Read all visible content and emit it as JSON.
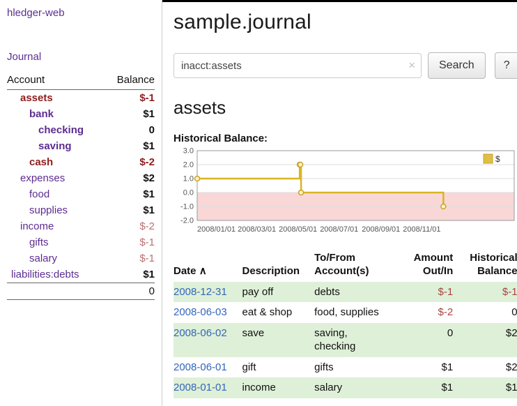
{
  "colors": {
    "purple": "#5c2d91",
    "link_blue": "#3366bb",
    "neg_strong": "#8f1d1d",
    "neg_soft": "#bb7070",
    "table_neg": "#a94442",
    "row_green": "#dff0d8"
  },
  "app": {
    "title": "hledger-web"
  },
  "sidebar": {
    "journal_link": "Journal",
    "accounts": {
      "account_header": "Account",
      "balance_header": "Balance",
      "rows": [
        {
          "name": "assets",
          "balance": "$-1",
          "depth": 1,
          "bold": true,
          "name_neg": true,
          "bal_neg": "strong"
        },
        {
          "name": "bank",
          "balance": "$1",
          "depth": 2,
          "bold": true,
          "name_neg": false,
          "bal_neg": ""
        },
        {
          "name": "checking",
          "balance": "0",
          "depth": 3,
          "bold": true,
          "name_neg": false,
          "bal_neg": ""
        },
        {
          "name": "saving",
          "balance": "$1",
          "depth": 3,
          "bold": true,
          "name_neg": false,
          "bal_neg": ""
        },
        {
          "name": "cash",
          "balance": "$-2",
          "depth": 2,
          "bold": true,
          "name_neg": true,
          "bal_neg": "strong"
        },
        {
          "name": "expenses",
          "balance": "$2",
          "depth": 1,
          "bold": false,
          "name_neg": false,
          "bal_neg": ""
        },
        {
          "name": "food",
          "balance": "$1",
          "depth": 2,
          "bold": false,
          "name_neg": false,
          "bal_neg": ""
        },
        {
          "name": "supplies",
          "balance": "$1",
          "depth": 2,
          "bold": false,
          "name_neg": false,
          "bal_neg": ""
        },
        {
          "name": "income",
          "balance": "$-2",
          "depth": 1,
          "bold": false,
          "name_neg": false,
          "bal_neg": "soft"
        },
        {
          "name": "gifts",
          "balance": "$-1",
          "depth": 2,
          "bold": false,
          "name_neg": false,
          "bal_neg": "soft"
        },
        {
          "name": "salary",
          "balance": "$-1",
          "depth": 2,
          "bold": false,
          "name_neg": false,
          "bal_neg": "soft"
        },
        {
          "name": "liabilities:debts",
          "balance": "$1",
          "depth": 0,
          "bold": false,
          "name_neg": false,
          "bal_neg": ""
        }
      ],
      "total": "0"
    }
  },
  "main": {
    "title": "sample.journal",
    "search": {
      "value": "inacct:assets",
      "clear_icon": "×",
      "button_label": "Search",
      "help_label": "?"
    },
    "account_title": "assets",
    "chart_label": "Historical Balance:"
  },
  "chart_data": {
    "type": "line",
    "step": true,
    "title": "Historical Balance",
    "series": [
      {
        "name": "$",
        "points": [
          {
            "date": "2008-01-01",
            "value": 1
          },
          {
            "date": "2008-06-01",
            "value": 2
          },
          {
            "date": "2008-06-02",
            "value": 2
          },
          {
            "date": "2008-06-03",
            "value": 0
          },
          {
            "date": "2008-12-31",
            "value": -1
          }
        ]
      }
    ],
    "ylim": [
      -2,
      3
    ],
    "y_ticks": [
      "3.0",
      "2.0",
      "1.0",
      "0.0",
      "-1.0",
      "-2.0"
    ],
    "x_domain": [
      "2008-01-01",
      "2009-04-15"
    ],
    "x_ticks": [
      "2008/01/01",
      "2008/03/01",
      "2008/05/01",
      "2008/07/01",
      "2008/09/01",
      "2008/11/01"
    ],
    "grid": "horizontal",
    "legend_position": "top-right",
    "line_color": "#d9b425",
    "marker_fill": "#fdf2c4",
    "marker_stroke": "#c9a227",
    "negative_region_color": "#f9d7d7"
  },
  "register": {
    "headers": {
      "date": "Date",
      "sort_icon": "∧",
      "description": "Description",
      "accounts_line1": "To/From",
      "accounts_line2": "Account(s)",
      "amount_line1": "Amount",
      "amount_line2": "Out/In",
      "balance_line1": "Historical",
      "balance_line2": "Balance"
    },
    "rows": [
      {
        "date": "2008-12-31",
        "description": "pay off",
        "accounts": "debts",
        "amount": "$-1",
        "amount_neg": true,
        "balance": "$-1",
        "balance_neg": true
      },
      {
        "date": "2008-06-03",
        "description": "eat & shop",
        "accounts": "food, supplies",
        "amount": "$-2",
        "amount_neg": true,
        "balance": "0",
        "balance_neg": false
      },
      {
        "date": "2008-06-02",
        "description": "save",
        "accounts": "saving, checking",
        "amount": "0",
        "amount_neg": false,
        "balance": "$2",
        "balance_neg": false
      },
      {
        "date": "2008-06-01",
        "description": "gift",
        "accounts": "gifts",
        "amount": "$1",
        "amount_neg": false,
        "balance": "$2",
        "balance_neg": false
      },
      {
        "date": "2008-01-01",
        "description": "income",
        "accounts": "salary",
        "amount": "$1",
        "amount_neg": false,
        "balance": "$1",
        "balance_neg": false
      }
    ]
  }
}
